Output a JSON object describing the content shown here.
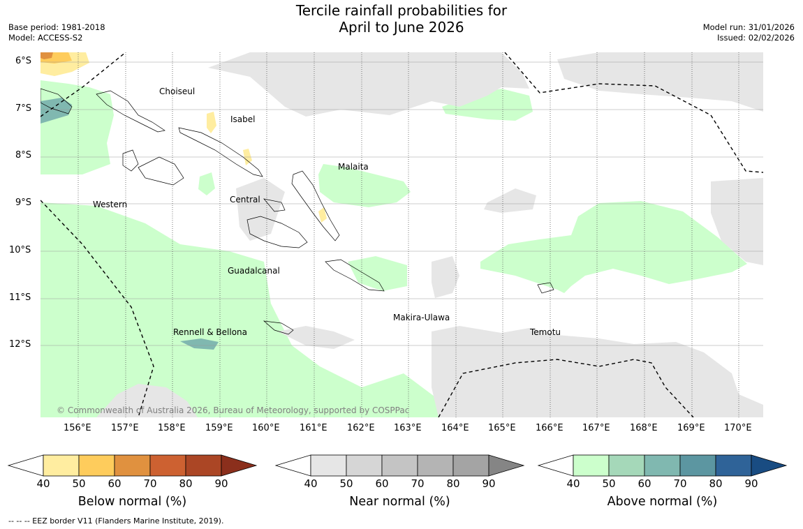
{
  "header": {
    "title_line1": "Tercile rainfall probabilities for",
    "title_line2": "April to June 2026",
    "base_period": "Base period: 1981-2018",
    "model": "Model: ACCESS-S2",
    "model_run": "Model run: 31/01/2026",
    "issued": "Issued: 02/02/2026"
  },
  "map": {
    "lat_labels": [
      "6°S",
      "7°S",
      "8°S",
      "9°S",
      "10°S",
      "11°S",
      "12°S"
    ],
    "lon_labels": [
      "156°E",
      "157°E",
      "158°E",
      "159°E",
      "160°E",
      "161°E",
      "162°E",
      "163°E",
      "164°E",
      "165°E",
      "166°E",
      "167°E",
      "168°E",
      "169°E",
      "170°E"
    ],
    "places": {
      "choiseul": "Choiseul",
      "isabel": "Isabel",
      "malaita": "Malaita",
      "western": "Western",
      "central": "Central",
      "guadalcanal": "Guadalcanal",
      "makira": "Makira-Ulawa",
      "rennell": "Rennell & Bellona",
      "temotu": "Temotu"
    },
    "copyright": "© Commonwealth of Australia 2026, Bureau of Meteorology, supported by COSPPac"
  },
  "colorbars": {
    "ticks": [
      "40",
      "50",
      "60",
      "70",
      "80",
      "90"
    ],
    "below": {
      "title": "Below normal (%)",
      "colors": [
        "#ffeda0",
        "#fecc5c",
        "#e0913f",
        "#cd6131",
        "#ab4625",
        "#8b2f1c"
      ]
    },
    "near": {
      "title": "Near normal (%)",
      "colors": [
        "#e6e6e6",
        "#d6d6d6",
        "#c4c4c4",
        "#b4b4b4",
        "#a4a4a4",
        "#858585"
      ]
    },
    "above": {
      "title": "Above normal (%)",
      "colors": [
        "#ccffcc",
        "#a5d8b9",
        "#80b8b0",
        "#5c96a1",
        "#2f6398",
        "#194c82"
      ]
    }
  },
  "footer": {
    "eez_note": "-- -- -- EEZ border V11 (Flanders Marine Institute, 2019)."
  }
}
